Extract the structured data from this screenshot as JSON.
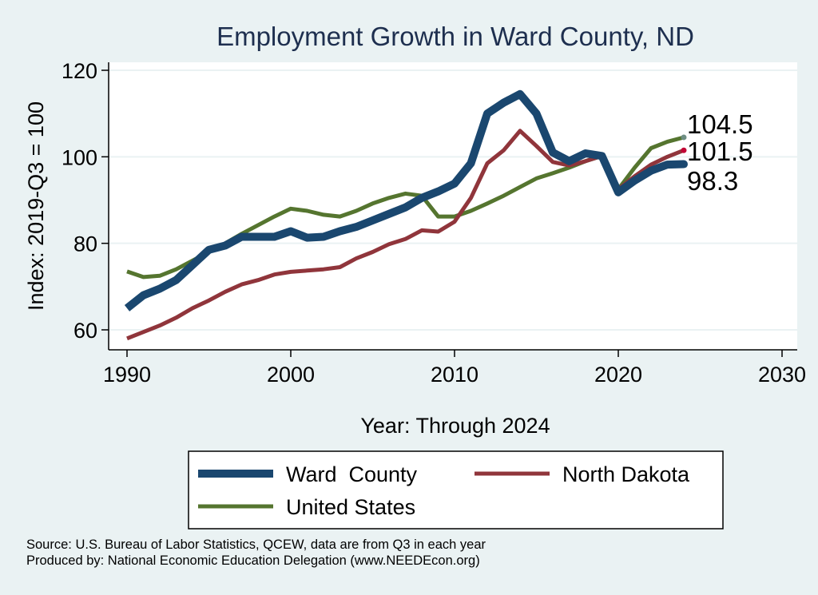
{
  "chart_data": {
    "type": "line",
    "title": "Employment Growth in Ward County, ND",
    "xlabel": "Year: Through 2024",
    "ylabel": "Index: 2019-Q3 = 100",
    "xlim": [
      1990,
      2030
    ],
    "ylim": [
      56,
      124
    ],
    "x_ticks": [
      "1990",
      "2000",
      "2010",
      "2020",
      "2030"
    ],
    "y_ticks": [
      "60",
      "80",
      "100",
      "120"
    ],
    "grid": true,
    "legend_position": "bottom",
    "x": [
      1990,
      1991,
      1992,
      1993,
      1994,
      1995,
      1996,
      1997,
      1998,
      1999,
      2000,
      2001,
      2002,
      2003,
      2004,
      2005,
      2006,
      2007,
      2008,
      2009,
      2010,
      2011,
      2012,
      2013,
      2014,
      2015,
      2016,
      2017,
      2018,
      2019,
      2020,
      2021,
      2022,
      2023,
      2024
    ],
    "series": [
      {
        "name": "Ward  County",
        "color": "#1a476f",
        "values": [
          65,
          68,
          69.5,
          71.5,
          75,
          78.5,
          79.5,
          81.5,
          81.5,
          81.5,
          82.8,
          81.3,
          81.5,
          82.8,
          83.8,
          85.3,
          86.8,
          88.3,
          90.5,
          92,
          93.8,
          98.5,
          110,
          112.5,
          114.5,
          110,
          101,
          99,
          100.8,
          100.2,
          91.8,
          94.5,
          96.8,
          98.2,
          98.3
        ],
        "end_label": "98.3"
      },
      {
        "name": "North Dakota",
        "color": "#90353b",
        "values": [
          58,
          59.5,
          61,
          62.8,
          65,
          66.8,
          68.8,
          70.5,
          71.5,
          72.8,
          73.4,
          73.7,
          74,
          74.5,
          76.5,
          78,
          79.8,
          81,
          83,
          82.7,
          85,
          90.5,
          98.5,
          101.5,
          106,
          102.5,
          98.8,
          98,
          99,
          100.2,
          92.5,
          95.5,
          98.2,
          100,
          101.5
        ],
        "end_label": "101.5"
      },
      {
        "name": "United States",
        "color": "#55752f",
        "values": [
          73.5,
          72.2,
          72.5,
          74,
          76,
          78,
          80,
          82.2,
          84.2,
          86.2,
          88,
          87.5,
          86.6,
          86.2,
          87.5,
          89.2,
          90.5,
          91.5,
          91,
          86.2,
          86.2,
          87.5,
          89.2,
          91,
          93,
          95,
          96.2,
          97.5,
          99,
          100.2,
          92.5,
          97.5,
          102,
          103.5,
          104.5
        ],
        "end_label": "104.5"
      }
    ]
  },
  "footer": {
    "source": "Source: U.S. Bureau of Labor Statistics, QCEW, data are from Q3 in each year",
    "produced": "Produced by: National Economic Education Delegation (www.NEEDEcon.org)"
  }
}
